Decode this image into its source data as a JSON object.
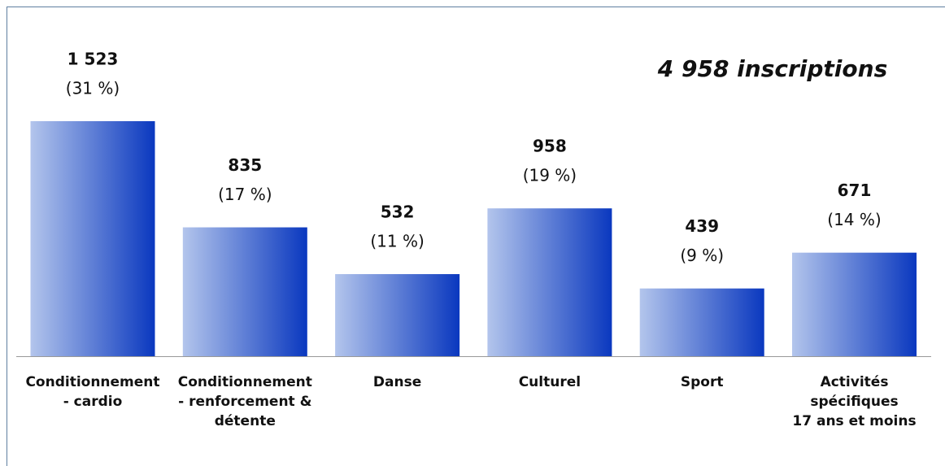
{
  "chart_data": {
    "type": "bar",
    "annotation": "4 958 inscriptions",
    "categories": [
      "Conditionnement\n- cardio",
      "Conditionnement\n- renforcement &\ndétente",
      "Danse",
      "Culturel",
      "Sport",
      "Activités\nspécifiques\n17 ans et moins"
    ],
    "values": [
      1523,
      835,
      532,
      958,
      439,
      671
    ],
    "value_labels": [
      "1 523",
      "835",
      "532",
      "958",
      "439",
      "671"
    ],
    "percent_labels": [
      "(31 %)",
      "(17 %)",
      "(11 %)",
      "(19 %)",
      "(9 %)",
      "(14 %)"
    ],
    "gradient": [
      "#b3c5ec",
      "#0a38bf"
    ],
    "grid": false
  }
}
